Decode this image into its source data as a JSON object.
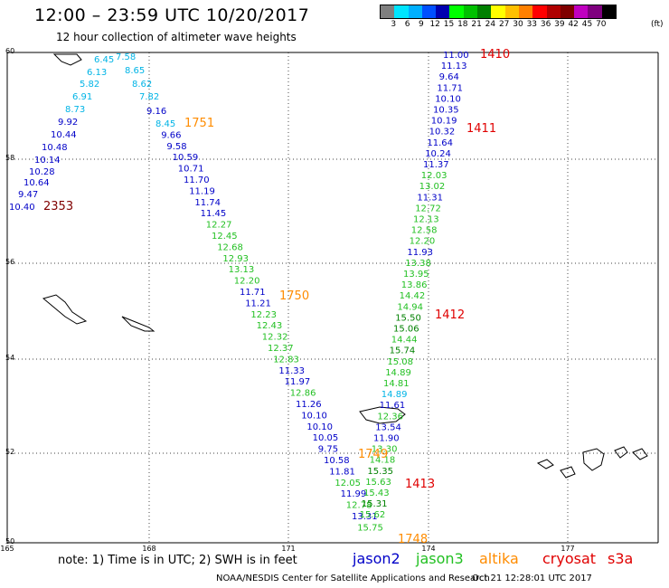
{
  "header": {
    "title": "12:00 – 23:59 UTC 10/20/2017",
    "subtitle": "12 hour collection of altimeter wave heights"
  },
  "colorbar": {
    "colors": [
      "#7f7f7f",
      "#00e5ff",
      "#00b0ff",
      "#0050ff",
      "#0000b0",
      "#00ff00",
      "#00c000",
      "#008000",
      "#ffff00",
      "#ffc000",
      "#ff8000",
      "#ff0000",
      "#b00000",
      "#7f0000",
      "#c000c0",
      "#7f007f",
      "#000000"
    ],
    "labels": [
      "3",
      "6",
      "9",
      "12",
      "15",
      "18",
      "21",
      "24",
      "27",
      "30",
      "33",
      "36",
      "39",
      "42",
      "45",
      "70"
    ],
    "unit": "(ft)"
  },
  "axes": {
    "lat_ticks": [
      "60",
      "58",
      "56",
      "54",
      "52",
      "50"
    ],
    "lon_ticks": [
      "165",
      "168",
      "171",
      "174",
      "177"
    ]
  },
  "palette": {
    "jason2": "#0000c8",
    "jason3": "#22c022",
    "altika": "#ff8c00",
    "cryosat": "#e00000",
    "s3a": "#e00000",
    "cyan": "#00b4e6",
    "darkred": "#800000"
  },
  "time_labels": [
    {
      "text": "1410",
      "color": "cryosat"
    },
    {
      "text": "1411",
      "color": "cryosat"
    },
    {
      "text": "1412",
      "color": "cryosat"
    },
    {
      "text": "1413",
      "color": "cryosat"
    },
    {
      "text": "1751",
      "color": "altika"
    },
    {
      "text": "1750",
      "color": "altika"
    },
    {
      "text": "1749",
      "color": "altika"
    },
    {
      "text": "1748",
      "color": "altika"
    },
    {
      "text": "2353",
      "color": "darkred"
    }
  ],
  "tracks": {
    "left_cyan": [
      "6.45",
      "7.58",
      "6.13",
      "8.65",
      "5.82",
      "8.62",
      "6.91",
      "7.82",
      "8.73"
    ],
    "left_blue_nw": [
      "9.16",
      "9.92",
      "10.44",
      "10.48",
      "10.14",
      "10.28",
      "10.64",
      "9.47",
      "10.40"
    ],
    "middle": [
      {
        "v": "8.45",
        "c": "cyan"
      },
      {
        "v": "9.66",
        "c": "jason2"
      },
      {
        "v": "9.58",
        "c": "jason2"
      },
      {
        "v": "10.59",
        "c": "jason2"
      },
      {
        "v": "10.71",
        "c": "jason2"
      },
      {
        "v": "11.70",
        "c": "jason2"
      },
      {
        "v": "11.19",
        "c": "jason2"
      },
      {
        "v": "11.74",
        "c": "jason2"
      },
      {
        "v": "11.45",
        "c": "jason2"
      },
      {
        "v": "12.27",
        "c": "jason3"
      },
      {
        "v": "12.45",
        "c": "jason3"
      },
      {
        "v": "12.68",
        "c": "jason3"
      },
      {
        "v": "12.93",
        "c": "jason3"
      },
      {
        "v": "13.13",
        "c": "jason3"
      },
      {
        "v": "12.20",
        "c": "jason3"
      },
      {
        "v": "11.71",
        "c": "jason2"
      },
      {
        "v": "11.21",
        "c": "jason2"
      },
      {
        "v": "12.23",
        "c": "jason3"
      },
      {
        "v": "12.43",
        "c": "jason3"
      },
      {
        "v": "12.32",
        "c": "jason3"
      },
      {
        "v": "12.37",
        "c": "jason3"
      },
      {
        "v": "12.83",
        "c": "jason3"
      },
      {
        "v": "11.33",
        "c": "jason2"
      },
      {
        "v": "11.97",
        "c": "jason2"
      },
      {
        "v": "12.86",
        "c": "jason3"
      },
      {
        "v": "11.26",
        "c": "jason2"
      },
      {
        "v": "10.10",
        "c": "jason2"
      },
      {
        "v": "10.10",
        "c": "jason2"
      },
      {
        "v": "10.05",
        "c": "jason2"
      },
      {
        "v": "9.75",
        "c": "jason2"
      },
      {
        "v": "10.58",
        "c": "jason2"
      },
      {
        "v": "11.81",
        "c": "jason2"
      },
      {
        "v": "12.05",
        "c": "jason3"
      },
      {
        "v": "11.99",
        "c": "jason2"
      },
      {
        "v": "12.78",
        "c": "jason3"
      },
      {
        "v": "13.31",
        "c": "jason2"
      },
      {
        "v": "15.75",
        "c": "jason3"
      }
    ],
    "right": [
      {
        "v": "11.00",
        "c": "jason2"
      },
      {
        "v": "11.13",
        "c": "jason2"
      },
      {
        "v": "9.64",
        "c": "jason2"
      },
      {
        "v": "11.71",
        "c": "jason2"
      },
      {
        "v": "10.10",
        "c": "jason2"
      },
      {
        "v": "10.35",
        "c": "jason2"
      },
      {
        "v": "10.19",
        "c": "jason2"
      },
      {
        "v": "10.32",
        "c": "jason2"
      },
      {
        "v": "11.64",
        "c": "jason2"
      },
      {
        "v": "10.24",
        "c": "jason2"
      },
      {
        "v": "11.37",
        "c": "jason2"
      },
      {
        "v": "12.03",
        "c": "jason3"
      },
      {
        "v": "13.02",
        "c": "jason3"
      },
      {
        "v": "11.31",
        "c": "jason2"
      },
      {
        "v": "12.72",
        "c": "jason3"
      },
      {
        "v": "12.13",
        "c": "jason3"
      },
      {
        "v": "12.58",
        "c": "jason3"
      },
      {
        "v": "12.20",
        "c": "jason3"
      },
      {
        "v": "11.93",
        "c": "jason2"
      },
      {
        "v": "13.38",
        "c": "jason3"
      },
      {
        "v": "13.95",
        "c": "jason3"
      },
      {
        "v": "13.86",
        "c": "jason3"
      },
      {
        "v": "14.42",
        "c": "jason3"
      },
      {
        "v": "14.94",
        "c": "jason3"
      },
      {
        "v": "15.50",
        "c": "jason2d"
      },
      {
        "v": "15.06",
        "c": "jason2d"
      },
      {
        "v": "14.44",
        "c": "jason3"
      },
      {
        "v": "15.74",
        "c": "jason2d"
      },
      {
        "v": "15.08",
        "c": "jason3"
      },
      {
        "v": "14.89",
        "c": "jason3"
      },
      {
        "v": "14.81",
        "c": "jason3"
      },
      {
        "v": "14.89",
        "c": "cyan"
      },
      {
        "v": "11.61",
        "c": "jason2"
      },
      {
        "v": "12.36",
        "c": "jason3"
      },
      {
        "v": "13.54",
        "c": "jason2"
      },
      {
        "v": "11.90",
        "c": "jason2"
      },
      {
        "v": "13.30",
        "c": "jason3"
      },
      {
        "v": "14.18",
        "c": "jason3"
      },
      {
        "v": "15.35",
        "c": "jason2d"
      },
      {
        "v": "15.63",
        "c": "jason3"
      },
      {
        "v": "15.43",
        "c": "jason3"
      },
      {
        "v": "15.31",
        "c": "jason2d"
      },
      {
        "v": "15.62",
        "c": "jason3"
      }
    ]
  },
  "footer": {
    "note": "note:  1) Time is in UTC;  2) SWH is in feet",
    "sat_jason2": "jason2",
    "sat_jason3": "jason3",
    "sat_altika": "altika",
    "sat_cryosat": "cryosat",
    "sat_s3a": "s3a",
    "credit": "NOAA/NESDIS Center for Satellite Applications and Research",
    "timestamp": "Oct 21 12:28:01 UTC 2017"
  }
}
